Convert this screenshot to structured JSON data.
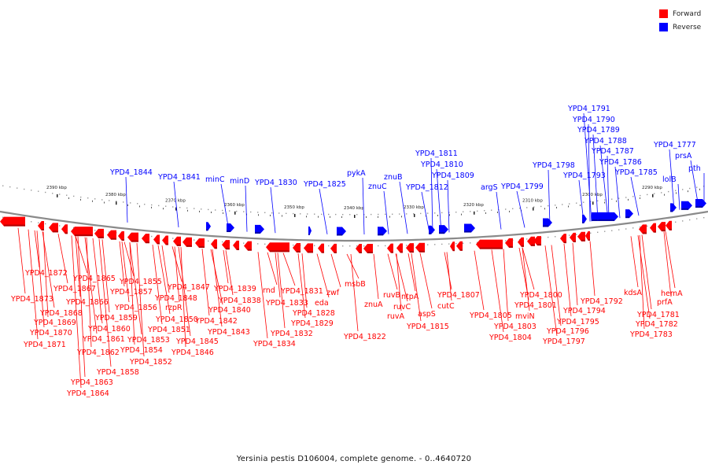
{
  "legend": {
    "forward": {
      "label": "Forward",
      "color": "#ff0000"
    },
    "reverse": {
      "label": "Reverse",
      "color": "#0000ff"
    }
  },
  "caption": "Yersinia pestis D106004, complete genome. - 0..4640720",
  "ruler": [
    {
      "label": "2390 kbp"
    },
    {
      "label": "2380 kbp"
    },
    {
      "label": "2370 kbp"
    },
    {
      "label": "2360 kbp"
    },
    {
      "label": "2350 kbp"
    },
    {
      "label": "2340 kbp"
    },
    {
      "label": "2330 kbp"
    },
    {
      "label": "2320 kbp"
    },
    {
      "label": "2310 kbp"
    },
    {
      "label": "2300 kbp"
    },
    {
      "label": "2290 kbp"
    }
  ],
  "reverse_genes": [
    "YPD4_1844",
    "YPD4_1841",
    "minC",
    "minD",
    "YPD4_1830",
    "YPD4_1825",
    "pykA",
    "znuC",
    "znuB",
    "YPD4_1811",
    "YPD4_1810",
    "YPD4_1812",
    "YPD4_1809",
    "argS",
    "YPD4_1799",
    "YPD4_1798",
    "YPD4_1793",
    "YPD4_1791",
    "YPD4_1790",
    "YPD4_1789",
    "YPD4_1788",
    "YPD4_1787",
    "YPD4_1786",
    "YPD4_1785",
    "lolB",
    "YPD4_1777",
    "prsA",
    "pth"
  ],
  "forward_genes": [
    "YPD4_1872",
    "YPD4_1873",
    "YPD4_1867",
    "YPD4_1868",
    "YPD4_1869",
    "YPD4_1870",
    "YPD4_1871",
    "YPD4_1865",
    "YPD4_1866",
    "YPD4_1859",
    "YPD4_1860",
    "YPD4_1861",
    "YPD4_1862",
    "YPD4_1863",
    "YPD4_1864",
    "YPD4_1858",
    "YPD4_1857",
    "YPD4_1856",
    "YPD4_1855",
    "YPD4_1853",
    "YPD4_1854",
    "YPD4_1852",
    "YPD4_1851",
    "YPD4_1850",
    "rzpR",
    "YPD4_1848",
    "YPD4_1847",
    "YPD4_1845",
    "YPD4_1846",
    "YPD4_1842",
    "YPD4_1843",
    "YPD4_1840",
    "YPD4_1839",
    "YPD4_1838",
    "rnd",
    "YPD4_1831",
    "YPD4_1833",
    "YPD4_1832",
    "YPD4_1834",
    "eda",
    "YPD4_1828",
    "YPD4_1829",
    "zwf",
    "msbB",
    "znuA",
    "YPD4_1822",
    "ruvB",
    "ruvC",
    "ruvA",
    "ntpA",
    "YPD4_1815",
    "aspS",
    "cutC",
    "YPD4_1807",
    "YPD4_1805",
    "YPD4_1804",
    "YPD4_1803",
    "mviN",
    "YPD4_1801",
    "YPD4_1800",
    "YPD4_1794",
    "YPD4_1795",
    "YPD4_1796",
    "YPD4_1797",
    "YPD4_1792",
    "kdsA",
    "YPD4_1781",
    "YPD4_1782",
    "YPD4_1783",
    "prfA",
    "hemA"
  ]
}
